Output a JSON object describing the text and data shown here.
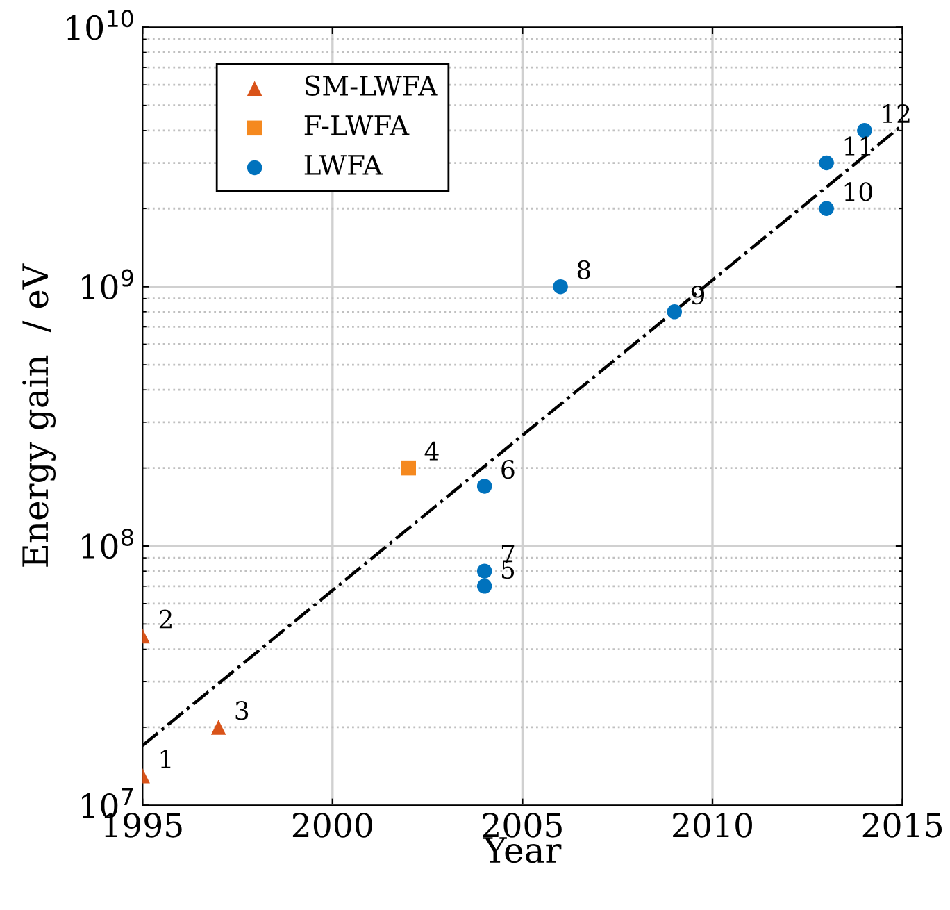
{
  "chart_data": {
    "type": "scatter",
    "xlabel": "Year",
    "ylabel": "Energy gain  / eV",
    "xlim": [
      1995,
      2015
    ],
    "xticks": [
      1995,
      2000,
      2005,
      2010,
      2015
    ],
    "ylim": [
      10000000,
      10000000000
    ],
    "log": "y",
    "yticks": [
      {
        "value": 10000000,
        "label": "10$^{7}$"
      },
      {
        "value": 100000000,
        "label": "10$^{8}$"
      },
      {
        "value": 1000000000,
        "label": "10$^{9}$"
      },
      {
        "value": 10000000000,
        "label": "10$^{10}$"
      }
    ],
    "grid": true,
    "legend": "top left",
    "series": [
      {
        "name": "SM-LWFA",
        "color": "#d95319",
        "marker": "triangle",
        "x": [
          1995,
          1995,
          1997
        ],
        "values": [
          13000000,
          45000000,
          20000000
        ]
      },
      {
        "name": "F-LWFA",
        "color": "#f5891f",
        "marker": "square",
        "x": [
          2002
        ],
        "values": [
          200000000
        ]
      },
      {
        "name": "LWFA",
        "color": "#0072bd",
        "marker": "circle",
        "x": [
          2004,
          2004,
          2004,
          2006,
          2009,
          2013,
          2013,
          2014
        ],
        "values": [
          70000000,
          170000000,
          80000000,
          1000000000,
          800000000,
          2000000000,
          3000000000,
          4000000000
        ]
      },
      {
        "type": "line",
        "color": "#000000",
        "line_style": "dashdot",
        "marker": "none",
        "x": [
          1995,
          2015
        ],
        "values": [
          17000000,
          4200000000
        ]
      }
    ],
    "annotations": [
      {
        "text": "1",
        "x": 1995,
        "y": 13000000
      },
      {
        "text": "2",
        "x": 1995,
        "y": 45000000
      },
      {
        "text": "3",
        "x": 1997,
        "y": 20000000
      },
      {
        "text": "4",
        "x": 2002,
        "y": 200000000
      },
      {
        "text": "5",
        "x": 2004,
        "y": 70000000
      },
      {
        "text": "6",
        "x": 2004,
        "y": 170000000
      },
      {
        "text": "7",
        "x": 2004,
        "y": 80000000
      },
      {
        "text": "8",
        "x": 2006,
        "y": 1000000000
      },
      {
        "text": "9",
        "x": 2009,
        "y": 800000000
      },
      {
        "text": "10",
        "x": 2013,
        "y": 2000000000
      },
      {
        "text": "11",
        "x": 2013,
        "y": 3000000000
      },
      {
        "text": "12",
        "x": 2014,
        "y": 4000000000
      }
    ]
  }
}
